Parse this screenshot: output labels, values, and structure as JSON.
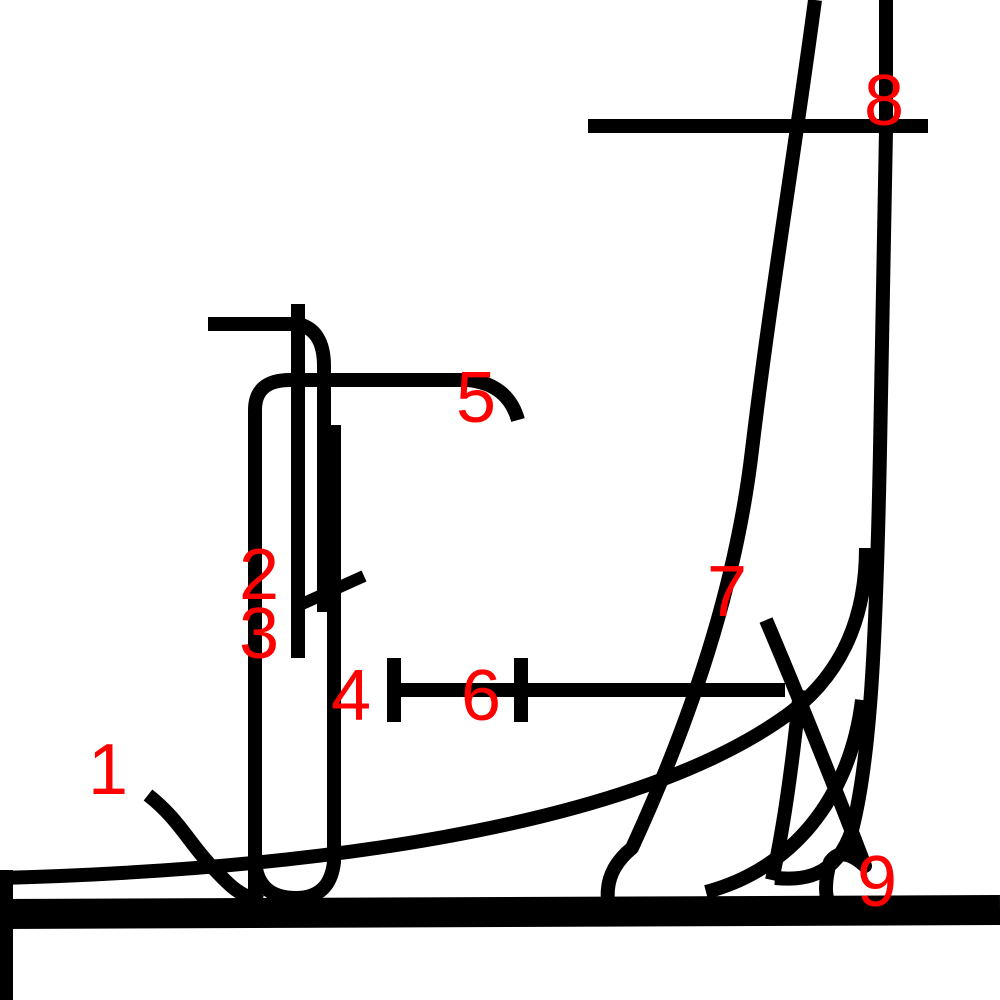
{
  "colors": {
    "stroke": "#000000",
    "label": "#ff0000",
    "background": "#ffffff"
  },
  "labels": {
    "n1": "1",
    "n2": "2",
    "n3": "3",
    "n4": "4",
    "n5": "5",
    "n6": "6",
    "n7": "7",
    "n8": "8",
    "n9": "9"
  }
}
